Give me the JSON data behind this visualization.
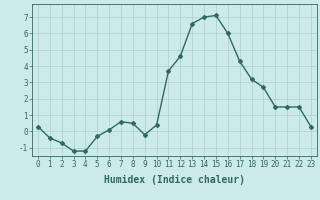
{
  "x": [
    0,
    1,
    2,
    3,
    4,
    5,
    6,
    7,
    8,
    9,
    10,
    11,
    12,
    13,
    14,
    15,
    16,
    17,
    18,
    19,
    20,
    21,
    22,
    23
  ],
  "y": [
    0.3,
    -0.4,
    -0.7,
    -1.2,
    -1.2,
    -0.3,
    0.1,
    0.6,
    0.5,
    -0.2,
    0.4,
    3.7,
    4.6,
    6.6,
    7.0,
    7.1,
    6.0,
    4.3,
    3.2,
    2.7,
    1.5,
    1.5,
    1.5,
    0.3
  ],
  "line_color": "#2e6b5e",
  "marker": "D",
  "marker_size": 2.0,
  "bg_color": "#cceaea",
  "grid_color": "#aacece",
  "xlabel": "Humidex (Indice chaleur)",
  "ylabel": "",
  "ylim": [
    -1.5,
    7.8
  ],
  "xlim": [
    -0.5,
    23.5
  ],
  "yticks": [
    -1,
    0,
    1,
    2,
    3,
    4,
    5,
    6,
    7
  ],
  "xticks": [
    0,
    1,
    2,
    3,
    4,
    5,
    6,
    7,
    8,
    9,
    10,
    11,
    12,
    13,
    14,
    15,
    16,
    17,
    18,
    19,
    20,
    21,
    22,
    23
  ],
  "tick_fontsize": 5.5,
  "label_fontsize": 7,
  "line_width": 1.0
}
